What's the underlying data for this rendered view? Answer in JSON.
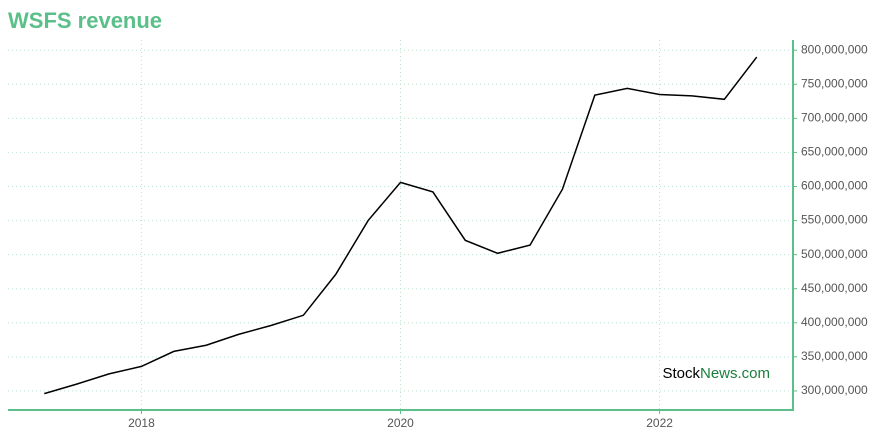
{
  "chart_data": {
    "type": "line",
    "title": "WSFS revenue",
    "x": [
      2017.25,
      2017.5,
      2017.75,
      2018,
      2018.25,
      2018.5,
      2018.75,
      2019,
      2019.25,
      2019.5,
      2019.75,
      2020,
      2020.25,
      2020.5,
      2020.75,
      2021,
      2021.25,
      2021.5,
      2021.75,
      2022,
      2022.25,
      2022.5,
      2022.75
    ],
    "series": [
      {
        "name": "WSFS revenue",
        "color": "#000000",
        "values": [
          296000000,
          310000000,
          325000000,
          336000000,
          358000000,
          367000000,
          383000000,
          396000000,
          411000000,
          471000000,
          550000000,
          606000000,
          592000000,
          521000000,
          502000000,
          514000000,
          596000000,
          734000000,
          744000000,
          735000000,
          733000000,
          728000000,
          790000000
        ]
      }
    ],
    "xlim": [
      2016.97,
      2023.03
    ],
    "xticks": [
      2018,
      2020,
      2022
    ],
    "ylim": [
      272000000,
      815000000
    ],
    "yticks": [
      {
        "value": 300000000,
        "label": "300,000,000"
      },
      {
        "value": 350000000,
        "label": "350,000,000"
      },
      {
        "value": 400000000,
        "label": "400,000,000"
      },
      {
        "value": 450000000,
        "label": "450,000,000"
      },
      {
        "value": 500000000,
        "label": "500,000,000"
      },
      {
        "value": 550000000,
        "label": "550,000,000"
      },
      {
        "value": 600000000,
        "label": "600,000,000"
      },
      {
        "value": 650000000,
        "label": "650,000,000"
      },
      {
        "value": 700000000,
        "label": "700,000,000"
      },
      {
        "value": 750000000,
        "label": "750,000,000"
      },
      {
        "value": 800000000,
        "label": "800,000,000"
      }
    ],
    "grid": true,
    "axis_color": "#5abf88",
    "watermark": {
      "part1": "Stock",
      "part2": "News.com"
    }
  }
}
